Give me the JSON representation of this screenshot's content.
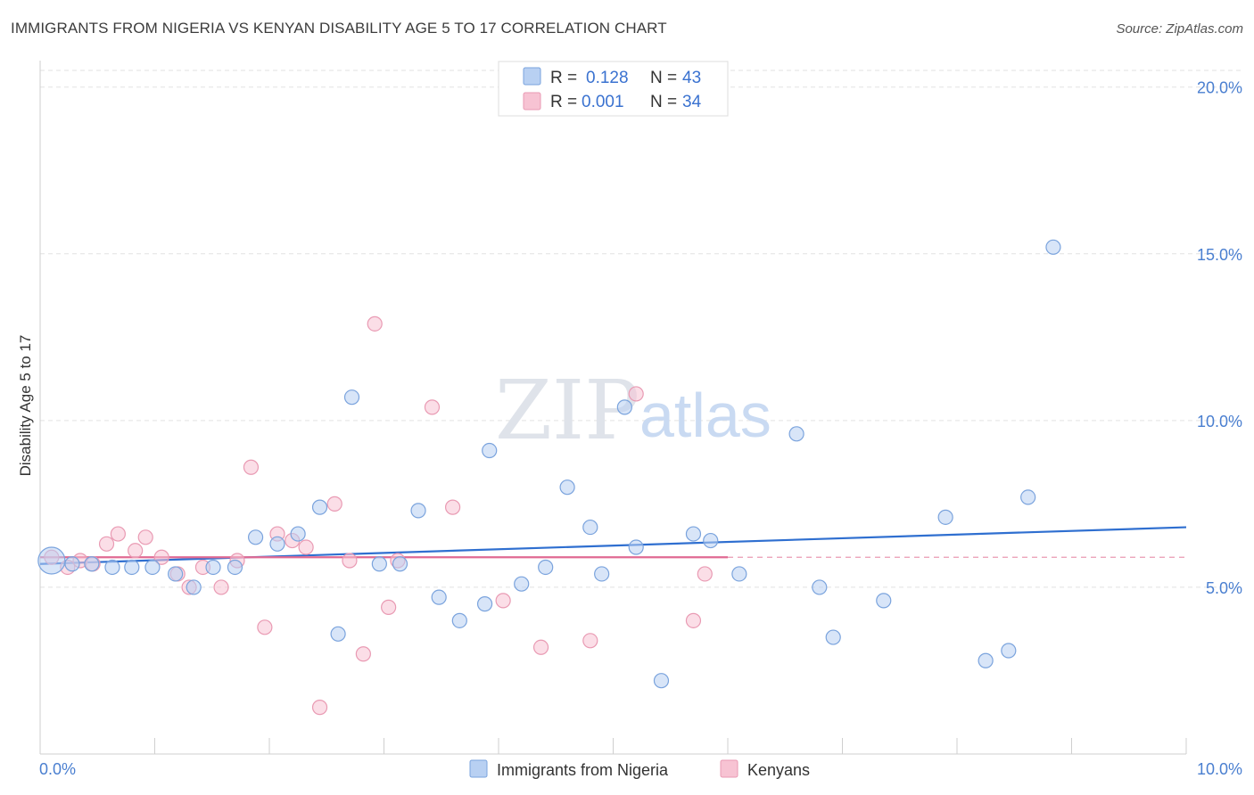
{
  "title": "IMMIGRANTS FROM NIGERIA VS KENYAN DISABILITY AGE 5 TO 17 CORRELATION CHART",
  "source": "Source: ZipAtlas.com",
  "watermark": {
    "zip": "ZIP",
    "atlas": "atlas"
  },
  "colors": {
    "nigeria_fill": "#b8d0f2",
    "nigeria_stroke": "#7aa3dd",
    "nigeria_line": "#2f6fd0",
    "kenyan_fill": "#f7c3d3",
    "kenyan_stroke": "#e99ab3",
    "kenyan_line": "#e06a93",
    "grid": "#e2e2e2",
    "tick_text": "#4a7fd0"
  },
  "legend": {
    "rows": [
      {
        "r_label": "R =",
        "r_value": "0.128",
        "n_label": "N =",
        "n_value": "43"
      },
      {
        "r_label": "R =",
        "r_value": "0.001",
        "n_label": "N =",
        "n_value": "34"
      }
    ]
  },
  "chart_data": {
    "type": "scatter",
    "title": "IMMIGRANTS FROM NIGERIA VS KENYAN DISABILITY AGE 5 TO 17 CORRELATION CHART",
    "xlabel": "",
    "ylabel": "Disability Age 5 to 17",
    "xlim": [
      0,
      10
    ],
    "ylim": [
      0,
      20.5
    ],
    "x_tick_labels": [
      "0.0%",
      "10.0%"
    ],
    "y_ticks": [
      5,
      10,
      15,
      20
    ],
    "y_tick_labels": [
      "5.0%",
      "10.0%",
      "15.0%",
      "20.0%"
    ],
    "legend_position": "top-center",
    "series": [
      {
        "name": "Immigrants from Nigeria",
        "r": 0.128,
        "n": 43,
        "trend": {
          "x": [
            0,
            10
          ],
          "y": [
            5.7,
            6.8
          ]
        },
        "points": [
          {
            "x": 0.1,
            "y": 5.8,
            "big": true
          },
          {
            "x": 0.28,
            "y": 5.7
          },
          {
            "x": 0.45,
            "y": 5.7
          },
          {
            "x": 0.63,
            "y": 5.6
          },
          {
            "x": 0.8,
            "y": 5.6
          },
          {
            "x": 0.98,
            "y": 5.6
          },
          {
            "x": 1.18,
            "y": 5.4
          },
          {
            "x": 1.34,
            "y": 5.0
          },
          {
            "x": 1.51,
            "y": 5.6
          },
          {
            "x": 1.7,
            "y": 5.6
          },
          {
            "x": 1.88,
            "y": 6.5
          },
          {
            "x": 2.07,
            "y": 6.3
          },
          {
            "x": 2.25,
            "y": 6.6
          },
          {
            "x": 2.44,
            "y": 7.4
          },
          {
            "x": 2.6,
            "y": 3.6
          },
          {
            "x": 2.72,
            "y": 10.7
          },
          {
            "x": 2.96,
            "y": 5.7
          },
          {
            "x": 3.14,
            "y": 5.7
          },
          {
            "x": 3.3,
            "y": 7.3
          },
          {
            "x": 3.48,
            "y": 4.7
          },
          {
            "x": 3.66,
            "y": 4.0
          },
          {
            "x": 3.88,
            "y": 4.5
          },
          {
            "x": 3.92,
            "y": 9.1
          },
          {
            "x": 4.2,
            "y": 5.1
          },
          {
            "x": 4.41,
            "y": 5.6
          },
          {
            "x": 4.6,
            "y": 8.0
          },
          {
            "x": 4.8,
            "y": 6.8
          },
          {
            "x": 4.9,
            "y": 5.4
          },
          {
            "x": 5.1,
            "y": 10.4
          },
          {
            "x": 5.2,
            "y": 6.2
          },
          {
            "x": 5.42,
            "y": 2.2
          },
          {
            "x": 5.7,
            "y": 6.6
          },
          {
            "x": 5.85,
            "y": 6.4
          },
          {
            "x": 6.1,
            "y": 5.4
          },
          {
            "x": 6.6,
            "y": 9.6
          },
          {
            "x": 6.8,
            "y": 5.0
          },
          {
            "x": 6.92,
            "y": 3.5
          },
          {
            "x": 7.36,
            "y": 4.6
          },
          {
            "x": 7.9,
            "y": 7.1
          },
          {
            "x": 8.25,
            "y": 2.8
          },
          {
            "x": 8.45,
            "y": 3.1
          },
          {
            "x": 8.62,
            "y": 7.7
          },
          {
            "x": 8.84,
            "y": 15.2
          }
        ]
      },
      {
        "name": "Kenyans",
        "r": 0.001,
        "n": 34,
        "trend": {
          "x": [
            0,
            6
          ],
          "y": [
            5.9,
            5.9
          ],
          "dashed_extension_to": 10
        },
        "points": [
          {
            "x": 0.1,
            "y": 5.9
          },
          {
            "x": 0.24,
            "y": 5.6
          },
          {
            "x": 0.35,
            "y": 5.8
          },
          {
            "x": 0.46,
            "y": 5.7
          },
          {
            "x": 0.58,
            "y": 6.3
          },
          {
            "x": 0.68,
            "y": 6.6
          },
          {
            "x": 0.83,
            "y": 6.1
          },
          {
            "x": 0.92,
            "y": 6.5
          },
          {
            "x": 1.06,
            "y": 5.9
          },
          {
            "x": 1.2,
            "y": 5.4
          },
          {
            "x": 1.3,
            "y": 5.0
          },
          {
            "x": 1.42,
            "y": 5.6
          },
          {
            "x": 1.58,
            "y": 5.0
          },
          {
            "x": 1.72,
            "y": 5.8
          },
          {
            "x": 1.84,
            "y": 8.6
          },
          {
            "x": 1.96,
            "y": 3.8
          },
          {
            "x": 2.07,
            "y": 6.6
          },
          {
            "x": 2.2,
            "y": 6.4
          },
          {
            "x": 2.32,
            "y": 6.2
          },
          {
            "x": 2.44,
            "y": 1.4
          },
          {
            "x": 2.57,
            "y": 7.5
          },
          {
            "x": 2.7,
            "y": 5.8
          },
          {
            "x": 2.82,
            "y": 3.0
          },
          {
            "x": 2.92,
            "y": 12.9
          },
          {
            "x": 3.04,
            "y": 4.4
          },
          {
            "x": 3.12,
            "y": 5.8
          },
          {
            "x": 3.42,
            "y": 10.4
          },
          {
            "x": 3.6,
            "y": 7.4
          },
          {
            "x": 4.04,
            "y": 4.6
          },
          {
            "x": 4.37,
            "y": 3.2
          },
          {
            "x": 4.8,
            "y": 3.4
          },
          {
            "x": 5.2,
            "y": 10.8
          },
          {
            "x": 5.7,
            "y": 4.0
          },
          {
            "x": 5.8,
            "y": 5.4
          }
        ]
      }
    ]
  }
}
